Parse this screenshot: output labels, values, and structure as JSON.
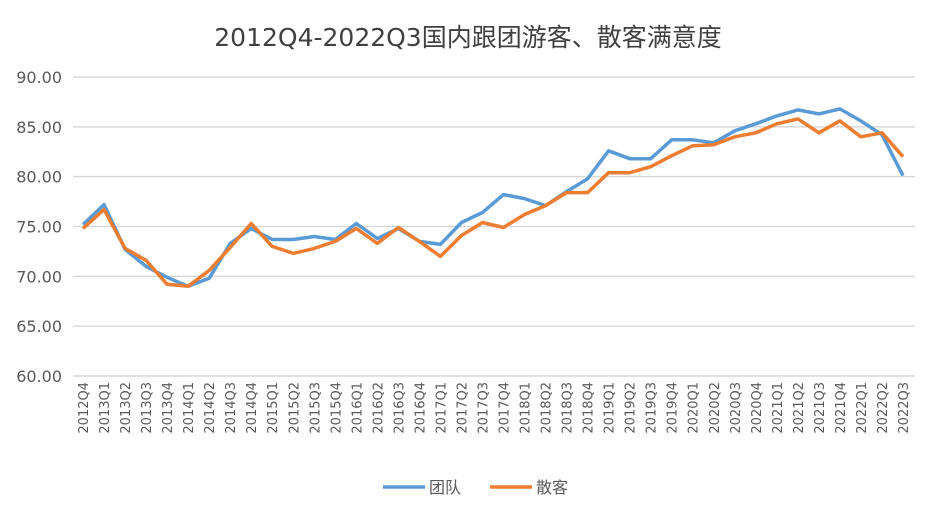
{
  "chart_data": {
    "type": "line",
    "title": "2012Q4-2022Q3国内跟团游客、散客满意度",
    "xlabel": "",
    "ylabel": "",
    "ylim": [
      60,
      90
    ],
    "yticks": [
      "60.00",
      "65.00",
      "70.00",
      "75.00",
      "80.00",
      "85.00",
      "90.00"
    ],
    "grid": true,
    "legend_position": "bottom",
    "categories": [
      "2012Q4",
      "2013Q1",
      "2013Q2",
      "2013Q3",
      "2013Q4",
      "2014Q1",
      "2014Q2",
      "2014Q3",
      "2014Q4",
      "2015Q1",
      "2015Q2",
      "2015Q3",
      "2015Q4",
      "2016Q1",
      "2016Q2",
      "2016Q3",
      "2016Q4",
      "2017Q1",
      "2017Q2",
      "2017Q3",
      "2017Q4",
      "2018Q1",
      "2018Q2",
      "2018Q3",
      "2018Q4",
      "2019Q1",
      "2019Q2",
      "2019Q3",
      "2019Q4",
      "2020Q1",
      "2020Q2",
      "2020Q3",
      "2020Q4",
      "2021Q1",
      "2021Q2",
      "2021Q3",
      "2021Q4",
      "2022Q1",
      "2022Q2",
      "2022Q3"
    ],
    "series": [
      {
        "name": "团队",
        "color": "#5b9bd5",
        "values": [
          75.2,
          77.2,
          72.7,
          71.0,
          69.9,
          69.0,
          69.8,
          73.3,
          74.8,
          73.7,
          73.7,
          74.0,
          73.7,
          75.3,
          73.8,
          74.8,
          73.5,
          73.2,
          75.4,
          76.4,
          78.2,
          77.8,
          77.1,
          78.5,
          79.8,
          82.6,
          81.8,
          81.8,
          83.7,
          83.7,
          83.4,
          84.6,
          85.3,
          86.1,
          86.7,
          86.3,
          86.8,
          85.6,
          84.2,
          80.1
        ]
      },
      {
        "name": "散客",
        "color": "#ed7d31",
        "values": [
          74.8,
          76.7,
          72.8,
          71.6,
          69.2,
          69.0,
          70.6,
          72.9,
          75.3,
          73.0,
          72.3,
          72.8,
          73.5,
          74.8,
          73.3,
          74.9,
          73.5,
          72.0,
          74.1,
          75.4,
          74.9,
          76.2,
          77.1,
          78.4,
          78.4,
          80.4,
          80.4,
          81.0,
          82.1,
          83.1,
          83.2,
          84.0,
          84.4,
          85.3,
          85.8,
          84.4,
          85.6,
          84.0,
          84.4,
          82.0
        ]
      }
    ]
  }
}
